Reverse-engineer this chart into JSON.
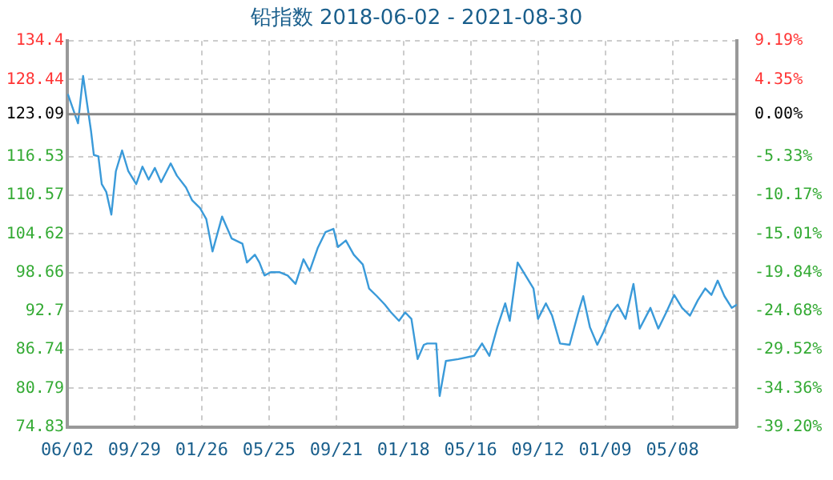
{
  "chart_data": {
    "type": "line",
    "title": "铅指数 2018-06-02 - 2021-08-30",
    "x": [
      "2018-06-03",
      "2018-06-21",
      "2018-06-30",
      "2018-07-14",
      "2018-07-19",
      "2018-07-27",
      "2018-08-02",
      "2018-08-10",
      "2018-08-19",
      "2018-08-27",
      "2018-09-07",
      "2018-09-18",
      "2018-10-02",
      "2018-10-13",
      "2018-10-24",
      "2018-11-04",
      "2018-11-15",
      "2018-12-02",
      "2018-12-13",
      "2018-12-29",
      "2019-01-09",
      "2019-01-23",
      "2019-02-03",
      "2019-02-14",
      "2019-03-03",
      "2019-03-20",
      "2019-04-08",
      "2019-04-16",
      "2019-04-30",
      "2019-05-08",
      "2019-05-17",
      "2019-05-28",
      "2019-06-13",
      "2019-06-27",
      "2019-07-11",
      "2019-07-25",
      "2019-08-05",
      "2019-08-19",
      "2019-09-02",
      "2019-09-16",
      "2019-09-24",
      "2019-10-08",
      "2019-10-22",
      "2019-11-07",
      "2019-11-18",
      "2019-12-02",
      "2019-12-16",
      "2019-12-27",
      "2020-01-10",
      "2020-01-21",
      "2020-02-01",
      "2020-02-12",
      "2020-02-23",
      "2020-02-29",
      "2020-03-16",
      "2020-03-22",
      "2020-04-02",
      "2020-04-24",
      "2020-05-22",
      "2020-06-05",
      "2020-06-18",
      "2020-07-02",
      "2020-07-16",
      "2020-07-24",
      "2020-08-07",
      "2020-08-21",
      "2020-09-04",
      "2020-09-12",
      "2020-09-26",
      "2020-10-07",
      "2020-10-21",
      "2020-11-07",
      "2020-11-23",
      "2020-12-01",
      "2020-12-13",
      "2020-12-26",
      "2021-01-06",
      "2021-01-20",
      "2021-01-31",
      "2021-02-14",
      "2021-02-28",
      "2021-03-11",
      "2021-03-30",
      "2021-04-13",
      "2021-04-27",
      "2021-05-11",
      "2021-05-25",
      "2021-06-08",
      "2021-06-22",
      "2021-07-05",
      "2021-07-16",
      "2021-07-27",
      "2021-08-08",
      "2021-08-21",
      "2021-08-30"
    ],
    "series": [
      {
        "color": "#3a9ad9",
        "values": [
          126.2,
          121.7,
          129.0,
          120.5,
          116.8,
          116.6,
          112.3,
          111.1,
          107.6,
          114.3,
          117.5,
          114.3,
          112.3,
          115.0,
          113.0,
          114.8,
          112.6,
          115.5,
          113.6,
          111.8,
          109.8,
          108.6,
          106.9,
          101.9,
          107.3,
          103.9,
          103.1,
          100.2,
          101.4,
          100.2,
          98.2,
          98.7,
          98.7,
          98.2,
          96.9,
          100.7,
          98.9,
          102.4,
          104.9,
          105.4,
          102.6,
          103.6,
          101.4,
          99.9,
          96.2,
          95.0,
          93.7,
          92.5,
          91.2,
          92.5,
          91.5,
          85.3,
          87.5,
          87.7,
          87.7,
          79.6,
          85.0,
          85.3,
          85.8,
          87.7,
          85.8,
          90.2,
          93.9,
          91.2,
          100.2,
          98.2,
          96.2,
          91.5,
          93.9,
          92.0,
          87.7,
          87.5,
          92.7,
          95.0,
          90.2,
          87.5,
          89.5,
          92.5,
          93.7,
          91.5,
          96.9,
          90.0,
          93.2,
          90.0,
          92.5,
          95.2,
          93.2,
          92.0,
          94.4,
          96.2,
          95.2,
          97.4,
          95.0,
          93.2,
          93.7
        ]
      }
    ],
    "xlim": [
      "2018-06-02",
      "2021-08-30"
    ],
    "xticks": [
      {
        "value": "2018-06-02",
        "label": "06/02"
      },
      {
        "value": "2018-09-29",
        "label": "09/29"
      },
      {
        "value": "2019-01-26",
        "label": "01/26"
      },
      {
        "value": "2019-05-25",
        "label": "05/25"
      },
      {
        "value": "2019-09-21",
        "label": "09/21"
      },
      {
        "value": "2020-01-18",
        "label": "01/18"
      },
      {
        "value": "2020-05-16",
        "label": "05/16"
      },
      {
        "value": "2020-09-12",
        "label": "09/12"
      },
      {
        "value": "2021-01-09",
        "label": "01/09"
      },
      {
        "value": "2021-05-08",
        "label": "05/08"
      }
    ],
    "ylim": [
      74.83,
      134.4
    ],
    "yticks": [
      74.83,
      80.79,
      86.74,
      92.7,
      98.66,
      104.62,
      110.57,
      116.53,
      123.09,
      128.44,
      134.4
    ],
    "y2lim": [
      -39.2,
      9.19
    ],
    "y2ticks": [
      {
        "value": -39.2,
        "label": "-39.20%"
      },
      {
        "value": -34.36,
        "label": "-34.36%"
      },
      {
        "value": -29.52,
        "label": "-29.52%"
      },
      {
        "value": -24.68,
        "label": "-24.68%"
      },
      {
        "value": -19.84,
        "label": "-19.84%"
      },
      {
        "value": -15.01,
        "label": "-15.01%"
      },
      {
        "value": -10.17,
        "label": "-10.17%"
      },
      {
        "value": -5.33,
        "label": "-5.33%"
      },
      {
        "value": 0,
        "label": "0.00%"
      },
      {
        "value": 4.35,
        "label": "4.35%"
      },
      {
        "value": 9.19,
        "label": "9.19%"
      }
    ],
    "ref_lines": [
      {
        "axis": "y",
        "value": 123.09,
        "color": "#888888"
      }
    ],
    "grid": true,
    "legend": false,
    "marker": "none",
    "line_style": "solid"
  }
}
